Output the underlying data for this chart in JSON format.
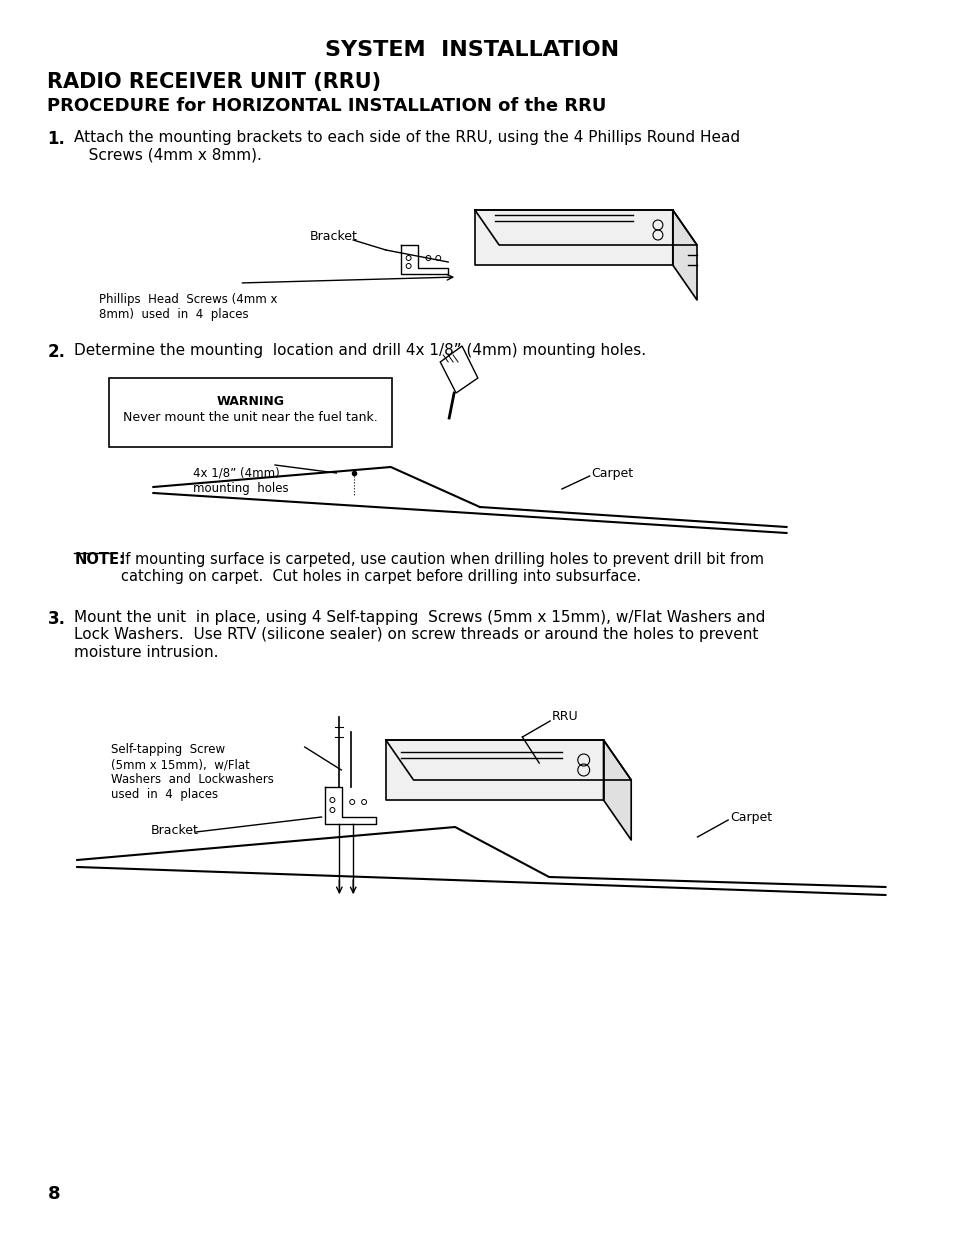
{
  "bg_color": "#ffffff",
  "title": "SYSTEM  INSTALLATION",
  "title_fontsize": 16,
  "subtitle1": "RADIO RECEIVER UNIT (RRU)",
  "subtitle1_fontsize": 15,
  "subtitle2": "PROCEDURE for HORIZONTAL INSTALLATION of the RRU",
  "subtitle2_fontsize": 13,
  "step1_number": "1.",
  "step2_number": "2.",
  "step2_text": "Determine the mounting  location and drill 4x 1/8” (4mm) mounting holes.",
  "warning_title": "WARNING",
  "warning_text": "Never mount the unit near the fuel tank.",
  "step3_number": "3.",
  "page_number": "8",
  "label_bracket1": "Bracket",
  "label_phillips": "Phillips  Head  Screws (4mm x\n8mm)  used  in  4  places",
  "label_mounting": "4x 1/8” (4mm)\nmounting  holes",
  "label_carpet1": "Carpet",
  "label_carpet2": "Carpet",
  "label_rru": "RRU",
  "label_self_tapping": "Self-tapping  Screw\n(5mm x 15mm),  w/Flat\nWashers  and  Lockwashers\nused  in  4  places",
  "label_bracket2": "Bracket"
}
